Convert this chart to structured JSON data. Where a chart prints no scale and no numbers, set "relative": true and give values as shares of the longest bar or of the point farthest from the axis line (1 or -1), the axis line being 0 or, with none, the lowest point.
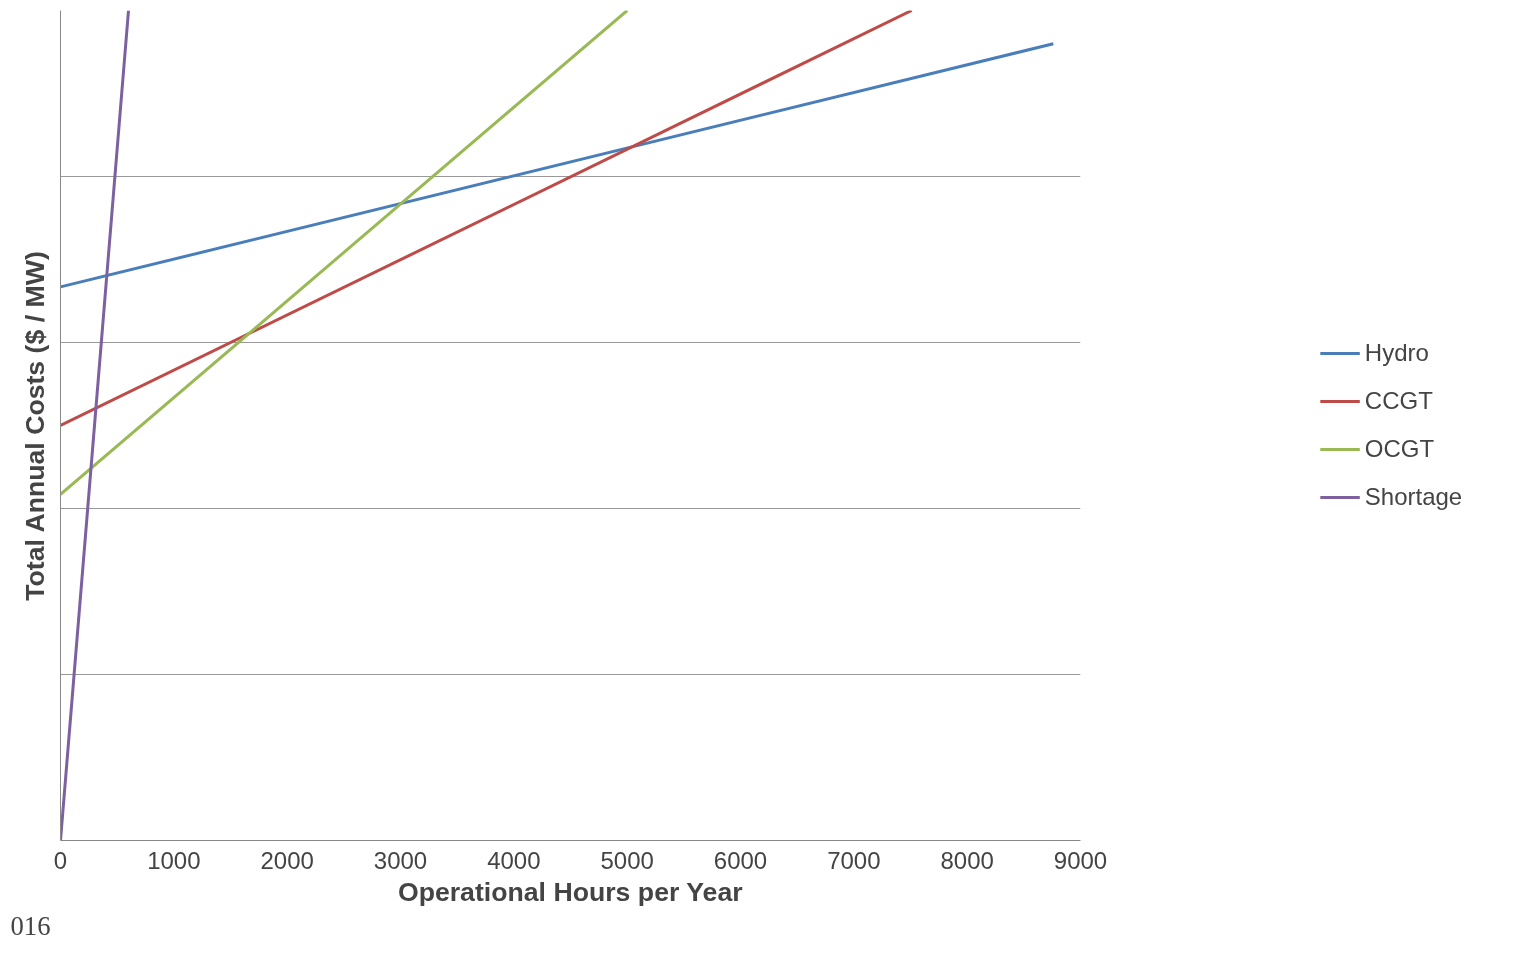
{
  "chart_data": {
    "type": "line",
    "relative": true,
    "xlabel": "Operational Hours per Year",
    "ylabel": "Total Annual Costs ($ / MW)",
    "xlim": [
      0,
      9000
    ],
    "xticks": [
      0,
      1000,
      2000,
      3000,
      4000,
      5000,
      6000,
      7000,
      8000,
      9000
    ],
    "grid": "y",
    "legend": "right",
    "line_style": "solid",
    "annotations": [
      "016"
    ],
    "series": [
      {
        "name": "Hydro",
        "color": "#4a7ebb",
        "x": [
          0,
          8760
        ],
        "values": [
          0.667,
          0.96
        ]
      },
      {
        "name": "CCGT",
        "color": "#be4b48",
        "x": [
          0,
          7510
        ],
        "values": [
          0.5,
          1
        ]
      },
      {
        "name": "OCGT",
        "color": "#98b954",
        "x": [
          0,
          5000
        ],
        "values": [
          0.417,
          1
        ]
      },
      {
        "name": "Shortage",
        "color": "#7d60a0",
        "x": [
          0,
          600
        ],
        "values": [
          0,
          1
        ]
      }
    ]
  }
}
